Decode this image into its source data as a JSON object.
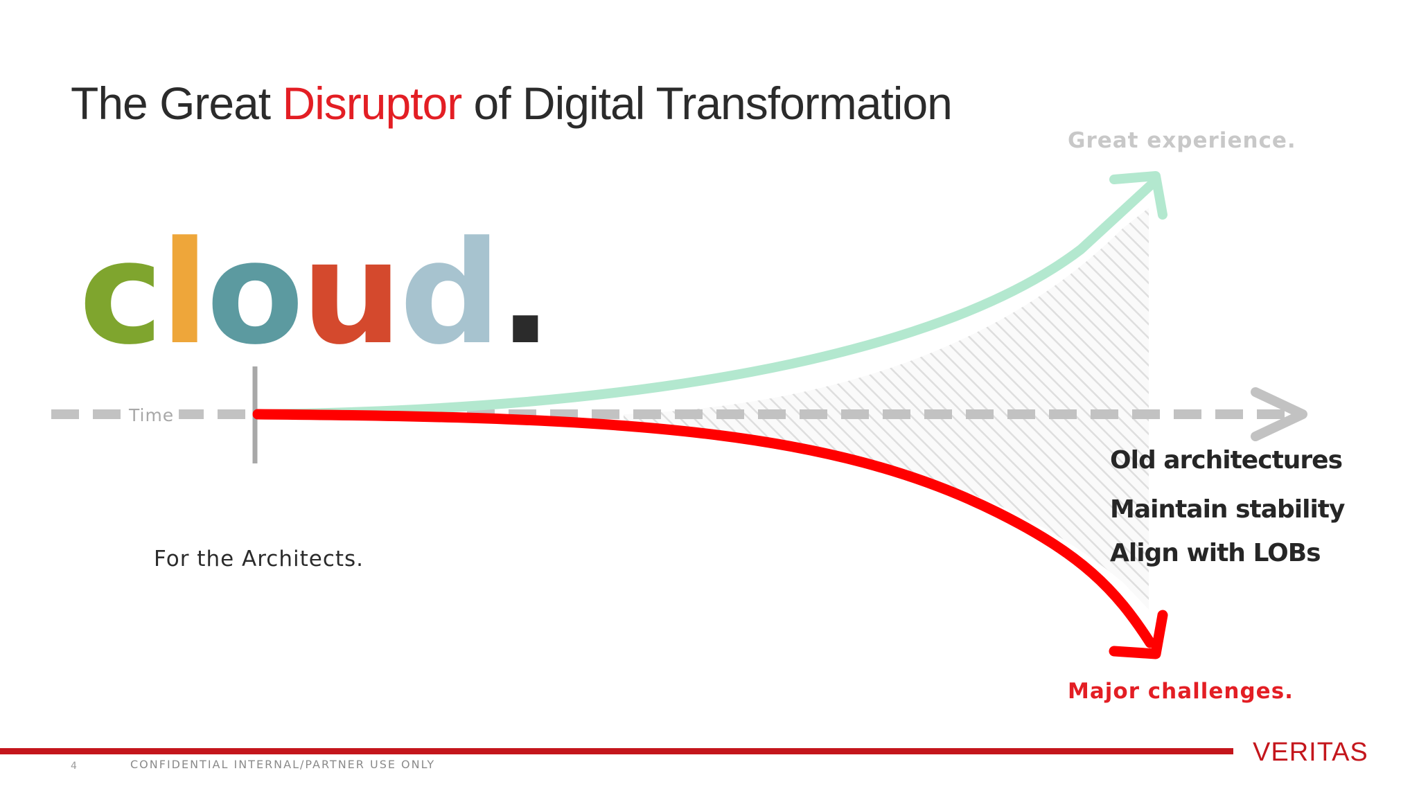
{
  "title": {
    "before": "The Great ",
    "highlight": "Disruptor",
    "after": " of Digital Transformation"
  },
  "logo_word": {
    "letters": [
      "c",
      "l",
      "o",
      "u",
      "d",
      "."
    ]
  },
  "axis_label": "Time",
  "subtitle": "For the Architects.",
  "upper_outcome": "Great experience.",
  "lower_outcome": "Major challenges.",
  "points": [
    "Old architectures",
    "Maintain stability",
    "Align with LOBs"
  ],
  "footer": {
    "page_number": "4",
    "notice": "CONFIDENTIAL INTERNAL/PARTNER USE ONLY",
    "brand": "VERITAS"
  }
}
